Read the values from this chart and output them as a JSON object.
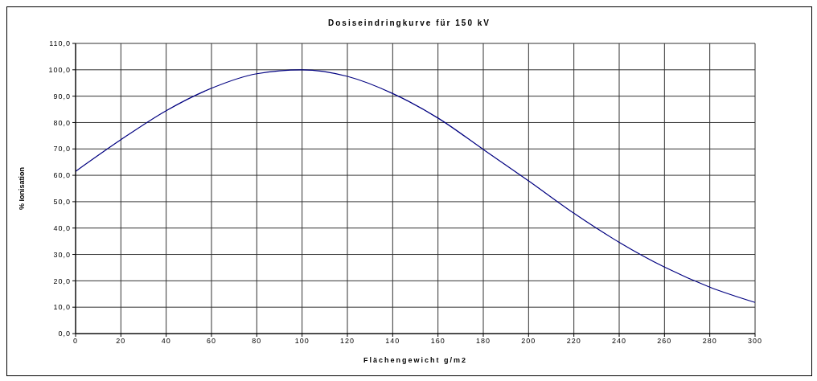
{
  "chart_data": {
    "type": "line",
    "title": "Dosiseindringkurve für 150 kV",
    "xlabel": "Flächengewicht g/m2",
    "ylabel": "% Ionisation",
    "x": [
      0,
      20,
      40,
      60,
      80,
      100,
      120,
      140,
      160,
      180,
      200,
      220,
      240,
      260,
      280,
      300
    ],
    "series": [
      {
        "color": "#000080",
        "values": [
          61.5,
          73.5,
          84.5,
          93,
          98.5,
          100,
          97.5,
          91,
          81.7,
          69.8,
          57.9,
          45.6,
          34.6,
          25.2,
          17.6,
          11.8
        ]
      }
    ],
    "xlim": [
      0,
      300
    ],
    "xticks": [
      0,
      20,
      40,
      60,
      80,
      100,
      120,
      140,
      160,
      180,
      200,
      220,
      240,
      260,
      280,
      300
    ],
    "ylim": [
      0,
      110
    ],
    "yticks": [
      {
        "value": 0,
        "label": "0,0"
      },
      {
        "value": 10,
        "label": "10,0"
      },
      {
        "value": 20,
        "label": "20,0"
      },
      {
        "value": 30,
        "label": "30,0"
      },
      {
        "value": 40,
        "label": "40,0"
      },
      {
        "value": 50,
        "label": "50,0"
      },
      {
        "value": 60,
        "label": "60,0"
      },
      {
        "value": 70,
        "label": "70,0"
      },
      {
        "value": 80,
        "label": "80,0"
      },
      {
        "value": 90,
        "label": "90,0"
      },
      {
        "value": 100,
        "label": "100,0"
      },
      {
        "value": 110,
        "label": "110,0"
      }
    ],
    "grid": true,
    "marker": "none",
    "line_style": "solid"
  }
}
